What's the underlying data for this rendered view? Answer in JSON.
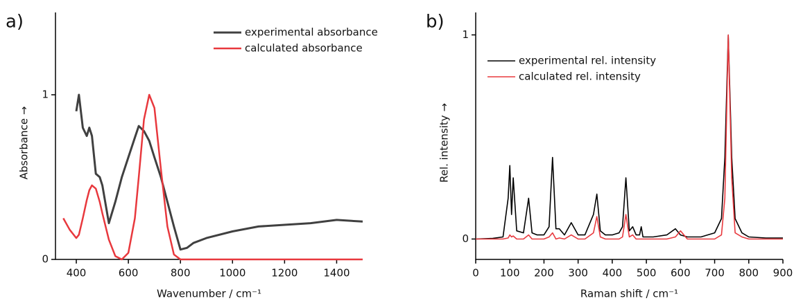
{
  "chart_data": [
    {
      "type": "line",
      "panel_label": "a)",
      "xlabel": "Wavenumber / cm⁻¹",
      "ylabel": "Absorbance →",
      "x": [
        350,
        375,
        400,
        410,
        425,
        440,
        450,
        460,
        475,
        490,
        500,
        525,
        550,
        575,
        600,
        625,
        640,
        660,
        680,
        700,
        725,
        750,
        775,
        800,
        825,
        850,
        900,
        1000,
        1100,
        1200,
        1300,
        1400,
        1500
      ],
      "series": [
        {
          "name": "experimental absorbance",
          "color": "#404040",
          "width": 3,
          "values": [
            null,
            null,
            0.9,
            1.0,
            0.8,
            0.75,
            0.8,
            0.75,
            0.52,
            0.5,
            0.45,
            0.22,
            0.35,
            0.5,
            0.62,
            0.74,
            0.81,
            0.78,
            0.72,
            0.62,
            0.5,
            0.35,
            0.2,
            0.06,
            0.07,
            0.1,
            0.13,
            0.17,
            0.2,
            0.21,
            0.22,
            0.24,
            0.23
          ]
        },
        {
          "name": "calculated absorbance",
          "color": "#e8383d",
          "width": 2.5,
          "values": [
            0.25,
            0.18,
            0.13,
            0.15,
            0.25,
            0.36,
            0.42,
            0.45,
            0.43,
            0.35,
            0.28,
            0.12,
            0.02,
            0,
            0.04,
            0.25,
            0.5,
            0.85,
            1.0,
            0.92,
            0.55,
            0.2,
            0.03,
            0,
            0,
            0,
            0,
            0,
            0,
            0,
            0,
            0,
            0
          ]
        }
      ],
      "xlim": [
        320,
        1500
      ],
      "xticks": [
        400,
        600,
        800,
        1000,
        1200,
        1400
      ],
      "ylim": [
        0,
        1.5
      ],
      "yticks": [
        0,
        1
      ],
      "legend": "upper right"
    },
    {
      "type": "line",
      "panel_label": "b)",
      "xlabel": "Raman shift / cm⁻¹",
      "ylabel": "Rel. intensity →",
      "x": [
        0,
        50,
        80,
        95,
        100,
        105,
        110,
        120,
        140,
        155,
        165,
        180,
        200,
        215,
        225,
        235,
        245,
        260,
        280,
        300,
        320,
        345,
        355,
        365,
        380,
        400,
        420,
        430,
        440,
        450,
        460,
        470,
        480,
        485,
        490,
        520,
        560,
        585,
        600,
        620,
        660,
        700,
        720,
        730,
        740,
        750,
        760,
        780,
        800,
        850,
        900
      ],
      "series": [
        {
          "name": "experimental rel. intensity",
          "color": "#000000",
          "width": 1.6,
          "values": [
            0,
            0.003,
            0.01,
            0.2,
            0.36,
            0.12,
            0.3,
            0.04,
            0.03,
            0.2,
            0.03,
            0.02,
            0.02,
            0.06,
            0.4,
            0.05,
            0.05,
            0.02,
            0.08,
            0.02,
            0.02,
            0.12,
            0.22,
            0.04,
            0.02,
            0.02,
            0.03,
            0.06,
            0.3,
            0.04,
            0.06,
            0.02,
            0.02,
            0.06,
            0.01,
            0.01,
            0.02,
            0.05,
            0.02,
            0.01,
            0.01,
            0.03,
            0.1,
            0.4,
            1.0,
            0.4,
            0.1,
            0.03,
            0.01,
            0.005,
            0.005
          ]
        },
        {
          "name": "calculated rel. intensity",
          "color": "#e8383d",
          "width": 1.6,
          "values": [
            0,
            0,
            0,
            0.005,
            0.02,
            0.01,
            0.015,
            0,
            0,
            0.02,
            0,
            0,
            0,
            0.01,
            0.03,
            0,
            0.005,
            0,
            0.02,
            0,
            0,
            0.03,
            0.11,
            0.01,
            0,
            0,
            0,
            0.01,
            0.12,
            0.01,
            0.02,
            0,
            0,
            0,
            0,
            0,
            0,
            0.01,
            0.04,
            0,
            0,
            0,
            0.02,
            0.2,
            1.0,
            0.3,
            0.03,
            0.01,
            0,
            0,
            0
          ]
        }
      ],
      "xlim": [
        0,
        900
      ],
      "xticks": [
        0,
        100,
        200,
        300,
        400,
        500,
        600,
        700,
        800,
        900
      ],
      "ylim": [
        -0.1,
        1.11
      ],
      "yticks": [
        0,
        1
      ],
      "legend": "upper left"
    }
  ]
}
